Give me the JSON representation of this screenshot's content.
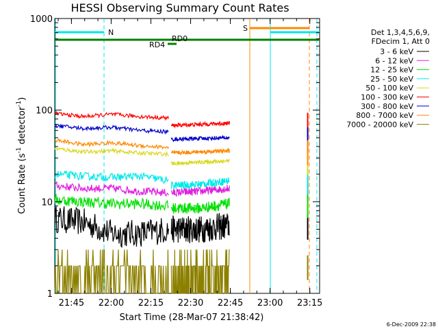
{
  "chart_data": {
    "type": "line",
    "title": "HESSI Observing Summary Count Rates",
    "xlabel": "Start Time (28-Mar-07 21:38:42)",
    "ylabel_main": "Count Rate (s",
    "ylabel_sup1": "-1",
    "ylabel_mid": " detector",
    "ylabel_sup2": "-1",
    "ylabel_end": ")",
    "ylog": true,
    "ylim": [
      1,
      1000
    ],
    "xlim_minutes": [
      0,
      100
    ],
    "x_ticks": [
      {
        "label": "21:45",
        "minute": 6.3
      },
      {
        "label": "22:00",
        "minute": 21.3
      },
      {
        "label": "22:15",
        "minute": 36.3
      },
      {
        "label": "22:30",
        "minute": 51.3
      },
      {
        "label": "22:45",
        "minute": 66.3
      },
      {
        "label": "23:00",
        "minute": 81.3
      },
      {
        "label": "23:15",
        "minute": 96.3
      }
    ],
    "y_ticks": [
      {
        "label": "1",
        "value": 1
      },
      {
        "label": "10",
        "value": 10
      },
      {
        "label": "100",
        "value": 100
      },
      {
        "label": "1000",
        "value": 1000
      }
    ],
    "legend_header": [
      "Det 1,3,4,5,6,9,",
      "FDecim 1, Att 0"
    ],
    "legend_placement": "right",
    "timestamp": "6-Dec-2009 22:38",
    "series": [
      {
        "name": "3 - 6 keV",
        "color": "#000000",
        "seg1": [
          6.5,
          6.0,
          4.5,
          4.5,
          5.0
        ],
        "seg2": [
          5.0,
          5.0,
          5.5
        ]
      },
      {
        "name": "6 - 12 keV",
        "color": "#e020e0",
        "seg1": [
          15.0,
          14.0,
          14.0,
          13.0,
          12.5
        ],
        "seg2": [
          12.5,
          13.0,
          14.0
        ]
      },
      {
        "name": "12 - 25 keV",
        "color": "#00e000",
        "seg1": [
          10.5,
          10.0,
          9.5,
          9.5,
          9.0
        ],
        "seg2": [
          8.5,
          8.5,
          9.5
        ]
      },
      {
        "name": "25 - 50 keV",
        "color": "#00e8e8",
        "seg1": [
          20.0,
          19.0,
          18.5,
          19.0,
          17.0
        ],
        "seg2": [
          15.0,
          15.5,
          17.0
        ]
      },
      {
        "name": "50 - 100 keV",
        "color": "#d8d820",
        "seg1": [
          38.0,
          35.0,
          36.0,
          34.0,
          33.0
        ],
        "seg2": [
          26.0,
          27.0,
          28.0
        ]
      },
      {
        "name": "100 - 300 keV",
        "color": "#ff0000",
        "seg1": [
          92.0,
          85.0,
          90.0,
          85.0,
          82.0
        ],
        "seg2": [
          68.0,
          70.0,
          72.0
        ]
      },
      {
        "name": "300 - 800 keV",
        "color": "#0000cc",
        "seg1": [
          68.0,
          63.0,
          65.0,
          60.0,
          58.0
        ],
        "seg2": [
          48.0,
          49.0,
          50.0
        ]
      },
      {
        "name": "800 - 7000 keV",
        "color": "#ff8800",
        "seg1": [
          47.0,
          42.0,
          44.0,
          41.0,
          39.0
        ],
        "seg2": [
          34.0,
          35.0,
          36.0
        ]
      },
      {
        "name": "7000 - 20000 keV",
        "color": "#8c8000",
        "seg1": [
          2.0,
          2.0,
          2.0,
          2.0,
          2.0
        ],
        "seg2": [
          2.0,
          2.0,
          2.0
        ]
      }
    ],
    "markers": [
      {
        "label": "N",
        "color": "#00e8e8"
      },
      {
        "label": "S",
        "color": "#ff8800"
      },
      {
        "label": "RD0",
        "color": "#008000"
      },
      {
        "label": "RD4",
        "color": "#008000"
      }
    ]
  }
}
